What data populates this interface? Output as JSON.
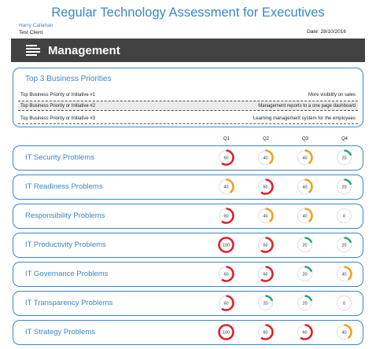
{
  "header": {
    "title": "Regular Technology Assessment for Executives",
    "client_name": "Harry Callahan",
    "client_org": "Test Client",
    "date": "Date: 28/10/2016"
  },
  "banner": {
    "icon": "menu-icon",
    "title": "Management"
  },
  "priorities": {
    "heading": "Top 3 Business Priorities",
    "rows": [
      {
        "label": "Top Business Priority or Initiative #1",
        "value": "More visibility on sales"
      },
      {
        "label": "Top Business Priority or Initiative #2",
        "value": "Management reports to a one page dashboard"
      },
      {
        "label": "Top Business Priority or Initiative #3",
        "value": "Learning management system for the employees"
      }
    ]
  },
  "quarters": [
    "Q1",
    "Q2",
    "Q3",
    "Q4"
  ],
  "colors": {
    "accent": "#3a86c8",
    "banner": "#424242",
    "score_100": "#e0202c",
    "score_60": "#e0202c",
    "score_40": "#f0a020",
    "score_20": "#2aa876",
    "score_0": "#d6d6d6"
  },
  "problems": [
    {
      "name": "IT Security Problems",
      "scores": [
        60,
        40,
        40,
        20
      ]
    },
    {
      "name": "IT Readiness Problems",
      "scores": [
        40,
        60,
        40,
        20
      ]
    },
    {
      "name": "Responsibility Problems",
      "scores": [
        60,
        40,
        40,
        0
      ]
    },
    {
      "name": "IT Productivity Problems",
      "scores": [
        100,
        60,
        20,
        20
      ]
    },
    {
      "name": "IT Governance Problems",
      "scores": [
        60,
        60,
        20,
        40
      ]
    },
    {
      "name": "IT Transparency Problems",
      "scores": [
        60,
        20,
        20,
        0
      ]
    },
    {
      "name": "IT Strategy Problems",
      "scores": [
        100,
        60,
        60,
        40
      ]
    }
  ]
}
